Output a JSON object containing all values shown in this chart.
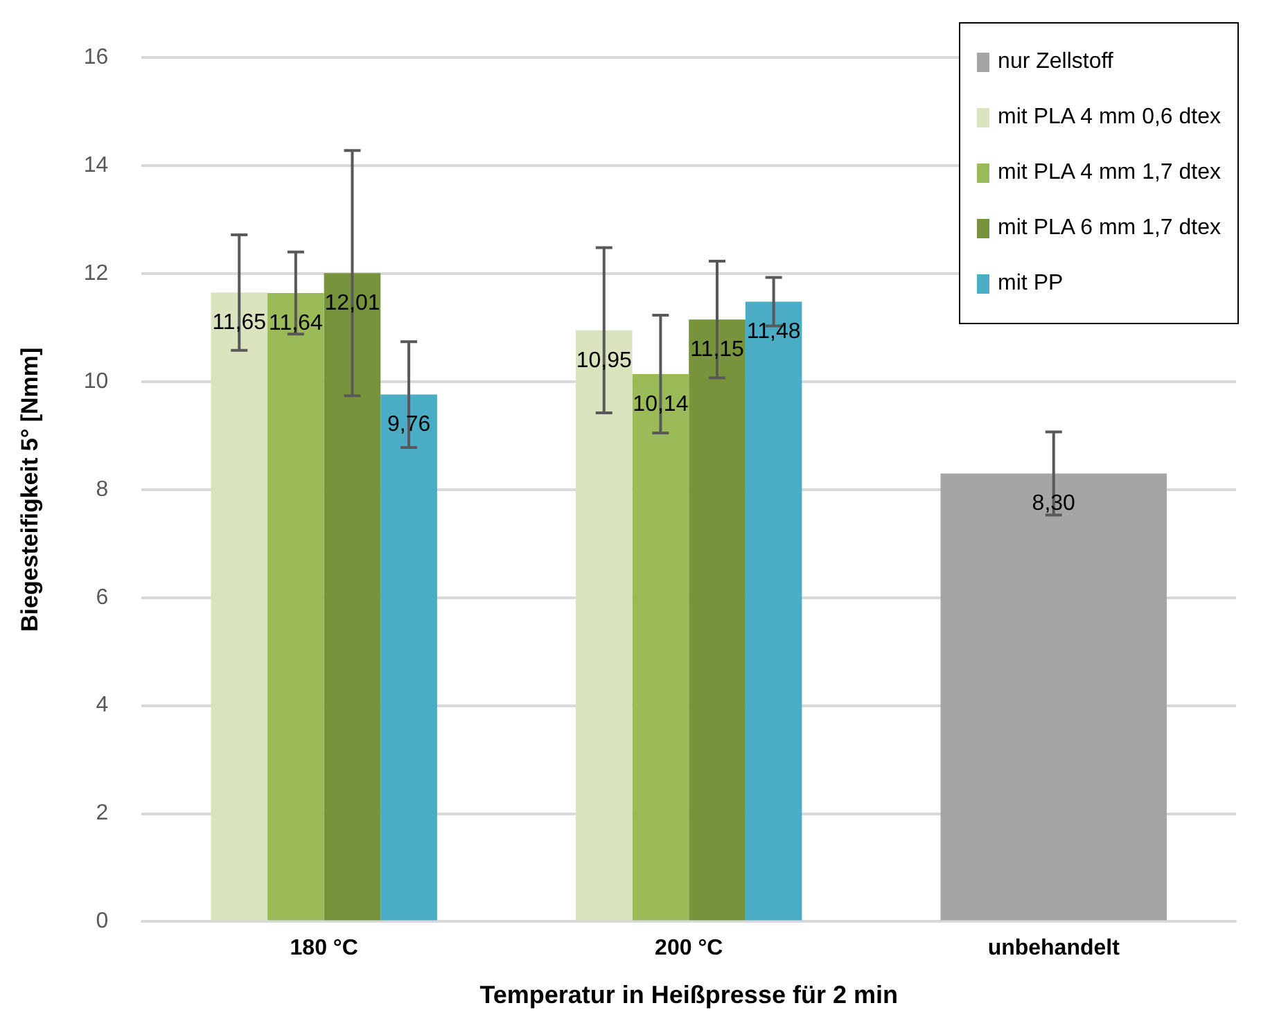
{
  "chart_data": {
    "type": "bar",
    "xlabel": "Temperatur in Heißpresse für 2 min",
    "ylabel": "Biegesteifigkeit 5° [Nmm]",
    "categories": [
      "180 °C",
      "200 °C",
      "unbehandelt"
    ],
    "series": [
      {
        "name": "nur Zellstoff",
        "color": "#a5a5a5",
        "values": [
          null,
          null,
          8.3
        ],
        "errors": [
          null,
          null,
          0.77
        ],
        "value_labels": [
          null,
          null,
          "8,30"
        ]
      },
      {
        "name": "mit PLA 4 mm 0,6 dtex",
        "color": "#d9e4bf",
        "values": [
          11.65,
          10.95,
          null
        ],
        "errors": [
          1.07,
          1.53,
          null
        ],
        "value_labels": [
          "11,65",
          "10,95",
          null
        ]
      },
      {
        "name": "mit PLA 4 mm 1,7 dtex",
        "color": "#9bbb59",
        "values": [
          11.64,
          10.14,
          null
        ],
        "errors": [
          0.76,
          1.09,
          null
        ],
        "value_labels": [
          "11,64",
          "10,14",
          null
        ]
      },
      {
        "name": "mit PLA 6 mm 1,7 dtex",
        "color": "#77933c",
        "values": [
          12.01,
          11.15,
          null
        ],
        "errors": [
          2.27,
          1.08,
          null
        ],
        "value_labels": [
          "12,01",
          "11,15",
          null
        ]
      },
      {
        "name": "mit PP",
        "color": "#4bacc6",
        "values": [
          9.76,
          11.48,
          null
        ],
        "errors": [
          0.98,
          0.45,
          null
        ],
        "value_labels": [
          "9,76",
          "11,48",
          null
        ]
      }
    ],
    "ylim": [
      0,
      16
    ],
    "yticks": [
      0,
      2,
      4,
      6,
      8,
      10,
      12,
      14,
      16
    ],
    "grid": "y",
    "legend": "top right"
  }
}
